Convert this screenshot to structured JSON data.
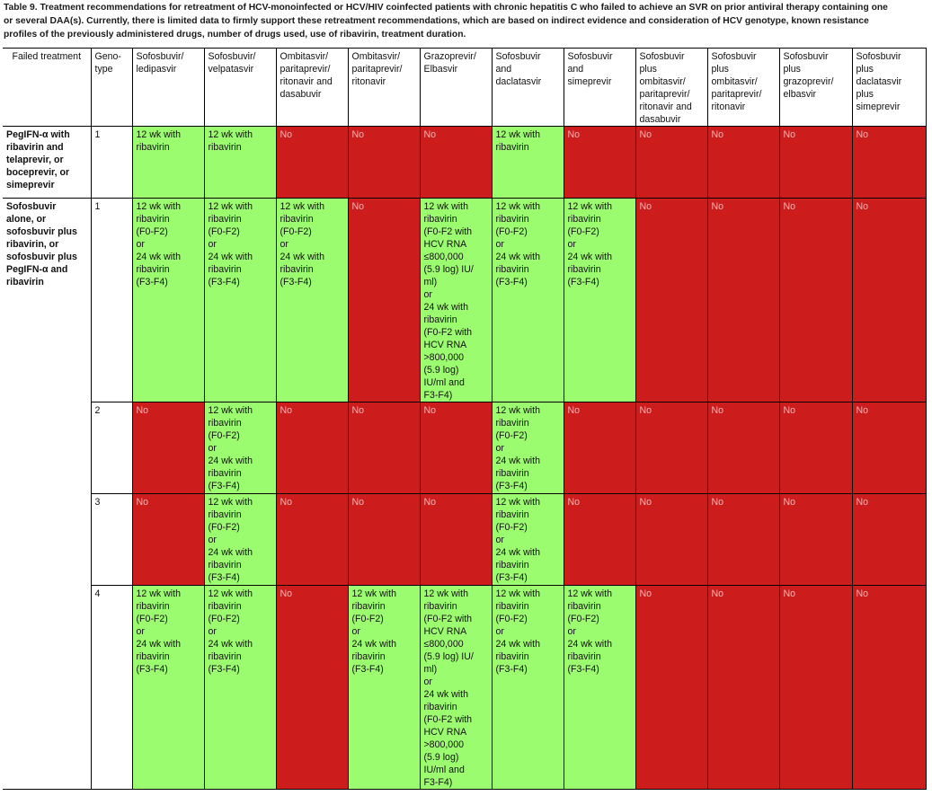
{
  "caption": {
    "lines": [
      "Table 9. Treatment recommendations for retreatment of HCV-monoinfected or HCV/HIV coinfected patients with chronic hepatitis C who failed to achieve an SVR on prior antiviral therapy containing one",
      "or several DAA(s). Currently, there is limited data to firmly support these retreatment recommendations, which are based on indirect evidence and consideration of HCV genotype, known resistance",
      "profiles of the previously administered drugs, number of drugs used, use of ribavirin, treatment duration."
    ]
  },
  "table": {
    "headers": [
      "Failed treatment",
      "Geno-\ntype",
      "Sofosbuvir/\nledipasvir",
      "Sofosbuvir/\nvelpatasvir",
      "Ombitasvir/\nparitaprevir/\nritonavir and\ndasabuvir",
      "Ombitasvir/\nparitaprevir/\nritonavir",
      "Grazoprevir/\nElbasvir",
      "Sofosbuvir\nand\ndaclatasvir",
      "Sofosbuvir\nand\nsimeprevir",
      "Sofosbuvir\nplus\nombitasvir/\nparitaprevir/\nritonavir and\ndasabuvir",
      "Sofosbuvir\nplus\nombitasvir/\nparitaprevir/\nritonavir",
      "Sofosbuvir\nplus\ngrazoprevir/\nelbasvir",
      "Sofosbuvir\nplus\ndaclatasvir\nplus\nsimeprevir"
    ],
    "groups": [
      {
        "failed": "PegIFN-α with\nribavirin and\ntelaprevir, or\nboceprevir, or\nsimeprevir",
        "rows": [
          {
            "genotype": "1",
            "cells": [
              "12 wk with\nribavirin",
              "12 wk with\nribavirin",
              "No",
              "No",
              "No",
              "12 wk with\nribavirin",
              "No",
              "No",
              "No",
              "No",
              "No"
            ]
          }
        ]
      },
      {
        "failed": "Sofosbuvir\nalone, or\nsofosbuvir plus\nribavirin, or\nsofosbuvir plus\nPegIFN-α and\nribavirin",
        "rows": [
          {
            "genotype": "1",
            "cells": [
              "12 wk with\nribavirin\n(F0-F2)\nor\n24 wk with\nribavirin\n(F3-F4)",
              "12 wk with\nribavirin\n(F0-F2)\nor\n24 wk with\nribavirin\n(F3-F4)",
              "12 wk with\nribavirin\n(F0-F2)\nor\n24 wk with\nribavirin\n(F3-F4)",
              "No",
              "12 wk with\nribavirin\n(F0-F2 with\nHCV RNA\n≤800,000\n(5.9 log) IU/\nml)\nor\n24 wk with\nribavirin\n(F0-F2 with\nHCV RNA\n>800,000\n(5.9 log)\nIU/ml and\nF3-F4)",
              "12 wk with\nribavirin\n(F0-F2)\nor\n24 wk with\nribavirin\n(F3-F4)",
              "12 wk with\nribavirin\n(F0-F2)\nor\n24 wk with\nribavirin\n(F3-F4)",
              "No",
              "No",
              "No",
              "No"
            ]
          },
          {
            "genotype": "2",
            "cells": [
              "No",
              "12 wk with\nribavirin\n(F0-F2)\nor\n24 wk with\nribavirin\n(F3-F4)",
              "No",
              "No",
              "No",
              "12 wk with\nribavirin\n(F0-F2)\nor\n24 wk with\nribavirin\n(F3-F4)",
              "No",
              "No",
              "No",
              "No",
              "No"
            ]
          },
          {
            "genotype": "3",
            "cells": [
              "No",
              "12 wk with\nribavirin\n(F0-F2)\nor\n24 wk with\nribavirin\n(F3-F4)",
              "No",
              "No",
              "No",
              "12 wk with\nribavirin\n(F0-F2)\nor\n24 wk with\nribavirin\n(F3-F4)",
              "No",
              "No",
              "No",
              "No",
              "No"
            ]
          },
          {
            "genotype": "4",
            "cells": [
              "12 wk with\nribavirin\n(F0-F2)\nor\n24 wk with\nribavirin\n(F3-F4)",
              "12 wk with\nribavirin\n(F0-F2)\nor\n24 wk with\nribavirin\n(F3-F4)",
              "No",
              "12 wk with\nribavirin\n(F0-F2)\nor\n24 wk with\nribavirin\n(F3-F4)",
              "12 wk with\nribavirin\n(F0-F2 with\nHCV RNA\n≤800,000\n(5.9 log) IU/\nml)\nor\n24 wk with\nribavirin\n(F0-F2 with\nHCV RNA\n>800,000\n(5.9 log)\nIU/ml and\nF3-F4)",
              "12 wk with\nribavirin\n(F0-F2)\nor\n24 wk with\nribavirin\n(F3-F4)",
              "12 wk with\nribavirin\n(F0-F2)\nor\n24 wk with\nribavirin\n(F3-F4)",
              "No",
              "No",
              "No",
              "No"
            ]
          }
        ]
      }
    ]
  },
  "colors": {
    "no_fill": "#cc1c1c",
    "no_text": "#f0b4b4",
    "recommended_fill": "#9cfc6f",
    "border": "#000000"
  }
}
